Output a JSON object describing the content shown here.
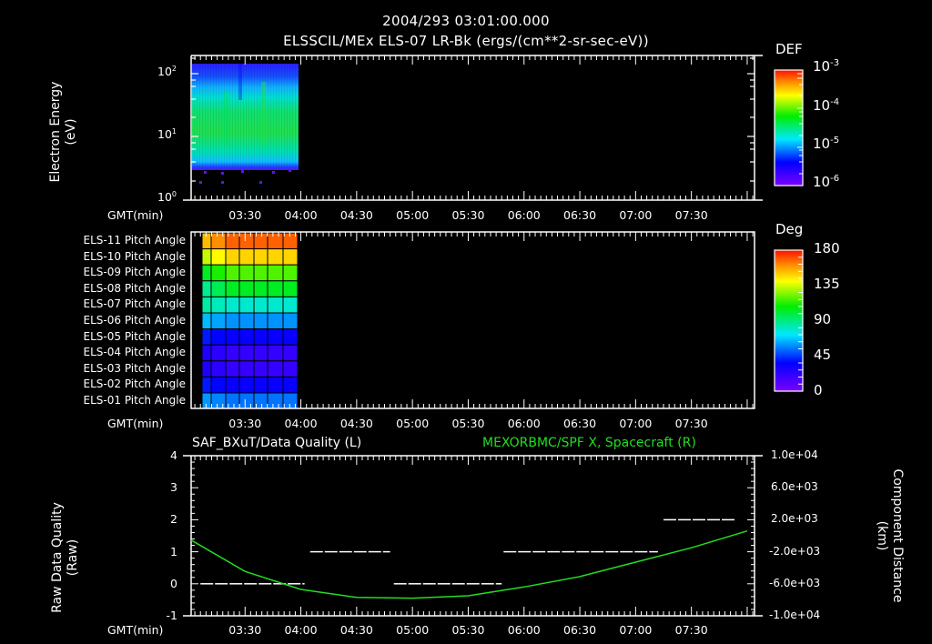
{
  "header": {
    "datetime": "2004/293 03:01:00.000",
    "subtitle": "ELSSCIL/MEx ELS-07 LR-Bk  (ergs/(cm**2-sr-sec-eV))"
  },
  "time_axis": {
    "label": "GMT(min)",
    "ticks": [
      "03:30",
      "04:00",
      "04:30",
      "05:00",
      "05:30",
      "06:00",
      "06:30",
      "07:00",
      "07:30"
    ]
  },
  "panel1": {
    "ylabel_line1": "Electron Energy",
    "ylabel_line2": "(eV)",
    "yticks": [
      "10",
      "10",
      "10"
    ],
    "ytick_exps": [
      "0",
      "1",
      "2"
    ],
    "colorbar": {
      "title": "DEF",
      "labels": [
        "10",
        "10",
        "10",
        "10"
      ],
      "label_exps": [
        "-3",
        "-4",
        "-5",
        "-6"
      ]
    }
  },
  "panel2": {
    "rows": [
      "ELS-11 Pitch Angle",
      "ELS-10 Pitch Angle",
      "ELS-09 Pitch Angle",
      "ELS-08 Pitch Angle",
      "ELS-07 Pitch Angle",
      "ELS-06 Pitch Angle",
      "ELS-05 Pitch Angle",
      "ELS-04 Pitch Angle",
      "ELS-03 Pitch Angle",
      "ELS-02 Pitch Angle",
      "ELS-01 Pitch Angle"
    ],
    "colorbar": {
      "title": "Deg",
      "labels": [
        "180",
        "135",
        "90",
        "45",
        "0"
      ]
    }
  },
  "panel3": {
    "left_title": "SAF_BXuT/Data Quality (L)",
    "right_title": "MEXORBMC/SPF X, Spacecraft (R)",
    "right_title_color": "#22dd22",
    "ylabel_left_line1": "Raw Data Quality",
    "ylabel_left_line2": "(Raw)",
    "yticks_left": [
      "4",
      "3",
      "2",
      "1",
      "0",
      "-1"
    ],
    "ylabel_right_line1": "Component Distance",
    "ylabel_right_line2": "(km)",
    "yticks_right": [
      "1.0e+04",
      "6.0e+03",
      "2.0e+03",
      "-2.0e+03",
      "-6.0e+03",
      "-1.0e+04"
    ]
  },
  "chart_data": [
    {
      "type": "heatmap",
      "title": "ELSSCIL/MEx ELS-07 LR-Bk (ergs/(cm**2-sr-sec-eV))",
      "xlabel": "GMT(min)",
      "ylabel": "Electron Energy (eV)",
      "yscale": "log",
      "ylim": [
        1,
        150
      ],
      "x_range": [
        "03:01",
        "03:58"
      ],
      "data_extent_energy_eV": [
        3.5,
        140
      ],
      "dominant_band_eV": [
        5,
        40
      ],
      "colorbar": {
        "label": "DEF",
        "scale": "log",
        "range": [
          1e-06,
          0.001
        ]
      },
      "notes": "Green (~1e-4) between ~5-40 eV, cyan/blue above ~40 eV, blue/violet at edges, no data after ~03:58"
    },
    {
      "type": "heatmap",
      "title": "ELS Pitch Angle",
      "xlabel": "GMT(min)",
      "categories": [
        "ELS-11",
        "ELS-10",
        "ELS-09",
        "ELS-08",
        "ELS-07",
        "ELS-06",
        "ELS-05",
        "ELS-04",
        "ELS-03",
        "ELS-02",
        "ELS-01"
      ],
      "approx_pitch_deg": [
        165,
        145,
        115,
        100,
        80,
        60,
        35,
        22,
        22,
        35,
        55
      ],
      "time_bins": 7,
      "x_range": [
        "03:06",
        "03:58"
      ],
      "colorbar": {
        "label": "Deg",
        "range": [
          0,
          180
        ],
        "ticks": [
          0,
          45,
          90,
          135,
          180
        ]
      }
    },
    {
      "type": "line",
      "title": "SAF_BXuT/Data Quality (L) / MEXORBMC/SPF X, Spacecraft (R)",
      "xlabel": "GMT(min)",
      "series": [
        {
          "name": "SAF_BXuT/Data Quality (L)",
          "axis": "left",
          "step": true,
          "segments": [
            {
              "x": [
                "03:06",
                "04:02"
              ],
              "y": 0
            },
            {
              "x": [
                "04:05",
                "04:48"
              ],
              "y": 1
            },
            {
              "x": [
                "04:50",
                "05:48"
              ],
              "y": 0
            },
            {
              "x": [
                "05:49",
                "07:12"
              ],
              "y": 1
            },
            {
              "x": [
                "07:15",
                "07:54"
              ],
              "y": 2
            }
          ]
        },
        {
          "name": "MEXORBMC/SPF X, Spacecraft (R)",
          "axis": "right",
          "x": [
            "03:01",
            "03:30",
            "04:00",
            "04:30",
            "05:00",
            "05:30",
            "06:00",
            "06:30",
            "07:00",
            "07:30",
            "08:00"
          ],
          "values": [
            -540,
            -4450,
            -6700,
            -7700,
            -7800,
            -7500,
            -6400,
            -5100,
            -3300,
            -1500,
            600
          ]
        }
      ],
      "ylim_left": [
        -1,
        4
      ],
      "ylim_right": [
        -10000,
        10000
      ]
    }
  ]
}
